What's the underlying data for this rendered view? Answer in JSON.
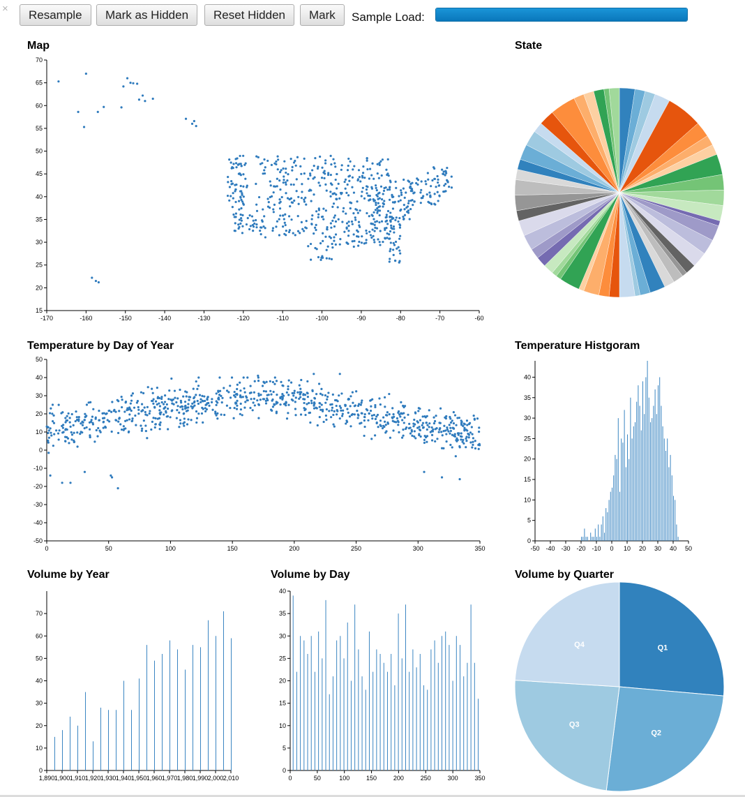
{
  "toolbar": {
    "buttons": [
      "Resample",
      "Mark as Hidden",
      "Reset Hidden",
      "Mark"
    ],
    "load_label": "Sample Load:",
    "load_fraction": 1.0
  },
  "colors": {
    "points": "#2f7bbd",
    "bars": "#3a85c2",
    "quarter": [
      "#3182bd",
      "#6baed6",
      "#9ecae1",
      "#c6dbef"
    ],
    "state": [
      "#3182bd",
      "#6baed6",
      "#9ecae1",
      "#c6dbef",
      "#e6550d",
      "#fd8d3c",
      "#fdae6b",
      "#fdd0a2",
      "#31a354",
      "#74c476",
      "#a1d99b",
      "#c7e9c0",
      "#756bb1",
      "#9e9ac8",
      "#bcbddc",
      "#dadaeb",
      "#636363",
      "#969696",
      "#bdbdbd",
      "#d9d9d9"
    ]
  },
  "chart_data": [
    {
      "id": "map",
      "type": "scatter",
      "title": "Map",
      "xlim": [
        -170,
        -60
      ],
      "ylim": [
        15,
        70
      ],
      "xticks": [
        "-170",
        "-160",
        "-150",
        "-140",
        "-130",
        "-120",
        "-110",
        "-100",
        "-90",
        "-80",
        "-70",
        "-60"
      ],
      "yticks": [
        "15",
        "20",
        "25",
        "30",
        "35",
        "40",
        "45",
        "50",
        "55",
        "60",
        "65",
        "70"
      ],
      "points": [
        [
          -167,
          65.3
        ],
        [
          -160,
          67
        ],
        [
          -162,
          58.6
        ],
        [
          -160.5,
          55.3
        ],
        [
          -157,
          58.6
        ],
        [
          -155.5,
          59.7
        ],
        [
          -151,
          59.6
        ],
        [
          -150.5,
          64.2
        ],
        [
          -149.5,
          66
        ],
        [
          -148.7,
          65
        ],
        [
          -148,
          64.9
        ],
        [
          -147,
          64.8
        ],
        [
          -146.5,
          61.3
        ],
        [
          -145.6,
          62.2
        ],
        [
          -145,
          61
        ],
        [
          -143,
          61.5
        ],
        [
          -134.6,
          57.1
        ],
        [
          -133,
          56
        ],
        [
          -132.5,
          56.6
        ],
        [
          -132,
          55.5
        ],
        [
          -158.5,
          22.2
        ],
        [
          -157.5,
          21.5
        ],
        [
          -156.8,
          21.2
        ]
      ],
      "clusters": [
        [
          -124,
          -119,
          36,
          49,
          65
        ],
        [
          -123,
          -115,
          32,
          36,
          30
        ],
        [
          -117,
          -109,
          31,
          49,
          70
        ],
        [
          -110,
          -104,
          31,
          49,
          60
        ],
        [
          -104,
          -97,
          26,
          49,
          90
        ],
        [
          -97,
          -90,
          29,
          49,
          95
        ],
        [
          -90,
          -83,
          29,
          49,
          95
        ],
        [
          -88,
          -82,
          30,
          41,
          40
        ],
        [
          -83,
          -80,
          25,
          36,
          35
        ],
        [
          -83,
          -77,
          35,
          44,
          55
        ],
        [
          -78,
          -70,
          38,
          44,
          45
        ],
        [
          -74,
          -67,
          41,
          47,
          30
        ]
      ]
    },
    {
      "id": "state",
      "type": "pie",
      "title": "State",
      "slices": [
        3,
        2,
        2,
        3,
        7,
        3,
        2,
        2,
        4,
        3,
        3,
        3,
        1,
        3,
        3,
        3,
        2,
        1,
        2,
        2,
        3,
        2,
        1,
        3,
        2,
        2,
        3,
        1,
        4,
        1,
        1,
        2,
        2,
        2,
        3,
        3,
        2,
        3,
        3,
        2,
        2,
        3,
        3,
        2,
        3,
        5,
        2,
        2,
        2,
        1,
        2
      ]
    },
    {
      "id": "temp_doy",
      "type": "scatter",
      "title": "Temperature by Day of Year",
      "xlim": [
        0,
        365
      ],
      "ylim": [
        -50,
        50
      ],
      "xticks": [
        "0",
        "50",
        "100",
        "150",
        "200",
        "250",
        "300",
        "350"
      ],
      "yticks": [
        "-50",
        "-40",
        "-30",
        "-20",
        "-10",
        "0",
        "10",
        "20",
        "30",
        "40",
        "50"
      ],
      "outliers": [
        [
          3,
          -14
        ],
        [
          13,
          -18
        ],
        [
          20,
          -18
        ],
        [
          32,
          -12
        ],
        [
          54,
          -14
        ],
        [
          55,
          -15
        ],
        [
          60,
          -21
        ],
        [
          5,
          25
        ],
        [
          178,
          41
        ],
        [
          225,
          42
        ],
        [
          247,
          42
        ],
        [
          318,
          -12
        ],
        [
          348,
          -16
        ],
        [
          333,
          -15
        ]
      ],
      "seasonal": {
        "count": 900,
        "mean": [
          10,
          22,
          31,
          20,
          8
        ],
        "spread": 10
      }
    },
    {
      "id": "temp_hist",
      "type": "bar",
      "title": "Temperature Histgoram",
      "xlim": [
        -50,
        50
      ],
      "ylim": [
        0,
        44
      ],
      "xticks": [
        "-50",
        "-40",
        "-30",
        "-20",
        "-10",
        "0",
        "10",
        "20",
        "30",
        "40",
        "50"
      ],
      "yticks": [
        "0",
        "5",
        "10",
        "15",
        "20",
        "25",
        "30",
        "35",
        "40"
      ],
      "x": [
        -20,
        -19,
        -18,
        -17,
        -16,
        -15,
        -14,
        -13,
        -12,
        -11,
        -10,
        -9,
        -8,
        -7,
        -6,
        -5,
        -4,
        -3,
        -2,
        -1,
        0,
        1,
        2,
        3,
        4,
        5,
        6,
        7,
        8,
        9,
        10,
        11,
        12,
        13,
        14,
        15,
        16,
        17,
        18,
        19,
        20,
        21,
        22,
        23,
        24,
        25,
        26,
        27,
        28,
        29,
        30,
        31,
        32,
        33,
        34,
        35,
        36,
        37,
        38,
        39,
        40,
        41,
        42,
        43
      ],
      "values": [
        1,
        1,
        3,
        1,
        1,
        0,
        2,
        1,
        1,
        3,
        1,
        4,
        1,
        4,
        6,
        2,
        8,
        7,
        10,
        12,
        13,
        16,
        21,
        20,
        30,
        12,
        25,
        24,
        32,
        18,
        26,
        20,
        35,
        25,
        28,
        29,
        34,
        38,
        33,
        27,
        39,
        31,
        40,
        44,
        35,
        29,
        30,
        33,
        37,
        31,
        38,
        40,
        33,
        28,
        25,
        22,
        25,
        18,
        21,
        16,
        11,
        10,
        4,
        1
      ]
    },
    {
      "id": "vol_year",
      "type": "bar",
      "title": "Volume by Year",
      "xlim": [
        1890,
        2010
      ],
      "ylim": [
        0,
        80
      ],
      "xticks": [
        "1,890",
        "1,900",
        "1,910",
        "1,920",
        "1,930",
        "1,940",
        "1,950",
        "1,960",
        "1,970",
        "1,980",
        "1,990",
        "2,000",
        "2,010"
      ],
      "yticks": [
        "0",
        "10",
        "20",
        "30",
        "40",
        "50",
        "60",
        "70"
      ],
      "x": [
        1895,
        1900,
        1905,
        1910,
        1915,
        1920,
        1925,
        1930,
        1935,
        1940,
        1945,
        1950,
        1955,
        1960,
        1965,
        1970,
        1975,
        1980,
        1985,
        1990,
        1995,
        2000,
        2005,
        2010
      ],
      "values": [
        15,
        18,
        24,
        20,
        35,
        13,
        28,
        27,
        27,
        40,
        27,
        41,
        56,
        49,
        52,
        58,
        54,
        45,
        56,
        55,
        67,
        60,
        71,
        59
      ]
    },
    {
      "id": "vol_day",
      "type": "bar",
      "title": "Volume by Day",
      "xlim": [
        0,
        366
      ],
      "ylim": [
        0,
        40
      ],
      "xticks": [
        "0",
        "50",
        "100",
        "150",
        "200",
        "250",
        "300",
        "350"
      ],
      "yticks": [
        "0",
        "5",
        "10",
        "15",
        "20",
        "25",
        "30",
        "35",
        "40"
      ],
      "x": [
        5,
        12,
        19,
        26,
        33,
        40,
        47,
        54,
        61,
        68,
        75,
        82,
        89,
        96,
        103,
        110,
        117,
        124,
        131,
        138,
        145,
        152,
        159,
        166,
        173,
        180,
        187,
        194,
        201,
        208,
        215,
        222,
        229,
        236,
        243,
        250,
        257,
        264,
        271,
        278,
        285,
        292,
        299,
        306,
        313,
        320,
        327,
        334,
        341,
        348,
        355,
        362
      ],
      "values": [
        39,
        22,
        30,
        29,
        26,
        30,
        22,
        31,
        25,
        38,
        17,
        21,
        29,
        30,
        25,
        33,
        20,
        37,
        27,
        21,
        18,
        31,
        22,
        27,
        26,
        24,
        22,
        26,
        19,
        35,
        25,
        37,
        22,
        27,
        23,
        26,
        19,
        18,
        27,
        29,
        24,
        30,
        31,
        28,
        20,
        30,
        28,
        21,
        24,
        37,
        24,
        16
      ]
    },
    {
      "id": "vol_quarter",
      "type": "pie",
      "title": "Volume by Quarter",
      "labels": [
        "Q1",
        "Q2",
        "Q3",
        "Q4"
      ],
      "values": [
        26.4,
        25.6,
        24.0,
        24.0
      ]
    }
  ]
}
